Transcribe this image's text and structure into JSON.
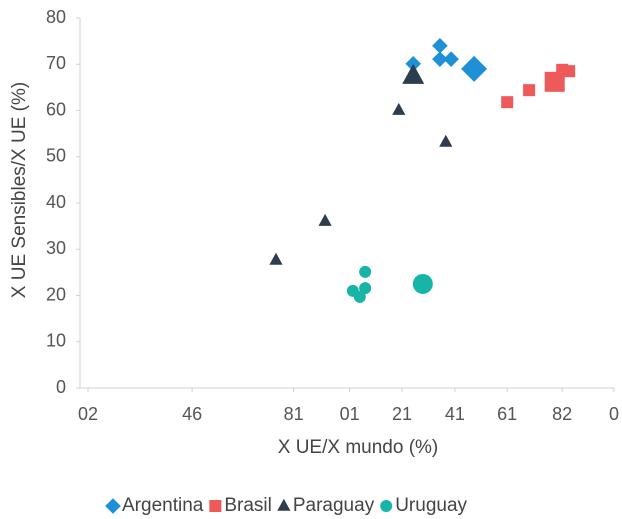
{
  "chart_data": {
    "type": "scatter",
    "x_label": "X UE/X mundo (%)",
    "y_label": "X UE Sensibles/X UE (%)",
    "xlim": [
      0,
      100
    ],
    "ylim": [
      0,
      80
    ],
    "xticks": [
      {
        "value": 1.5,
        "label": "02"
      },
      {
        "value": 21,
        "label": "46"
      },
      {
        "value": 40,
        "label": "81"
      },
      {
        "value": 50.5,
        "label": "01"
      },
      {
        "value": 60.3,
        "label": "21"
      },
      {
        "value": 70.2,
        "label": "41"
      },
      {
        "value": 80,
        "label": "61"
      },
      {
        "value": 90.3,
        "label": "82"
      },
      {
        "value": 100,
        "label": "0"
      }
    ],
    "yticks": [
      0,
      10,
      20,
      30,
      40,
      50,
      60,
      70,
      80
    ],
    "series": [
      {
        "name": "Argentina",
        "color": "#1f8fd6",
        "marker": "diamond",
        "x": [
          62.4,
          67.4,
          67.4,
          69.5,
          73.8
        ],
        "values": [
          70.1,
          74,
          71.1,
          71.1,
          69
        ],
        "sizes": [
          1,
          1,
          1,
          1,
          2
        ]
      },
      {
        "name": "Brasil",
        "color": "#ee5a5a",
        "marker": "square",
        "x": [
          80,
          84.1,
          88.9,
          90.3,
          91.6
        ],
        "values": [
          61.8,
          64.4,
          66.2,
          68.8,
          68.5
        ],
        "sizes": [
          1,
          1,
          2,
          1,
          1
        ]
      },
      {
        "name": "Paraguay",
        "color": "#2e3d4d",
        "marker": "triangle",
        "x": [
          36.7,
          45.9,
          59.7,
          62.4,
          68.5
        ],
        "values": [
          27.7,
          36.1,
          60.1,
          67.5,
          53.2
        ],
        "sizes": [
          1,
          1,
          1,
          2,
          1
        ]
      },
      {
        "name": "Uruguay",
        "color": "#17b5a8",
        "marker": "circle",
        "x": [
          51.1,
          52.4,
          53.4,
          53.4,
          64.2
        ],
        "values": [
          21,
          19.7,
          25.1,
          21.6,
          22.5
        ],
        "sizes": [
          1,
          1,
          1,
          1,
          2
        ]
      }
    ]
  }
}
